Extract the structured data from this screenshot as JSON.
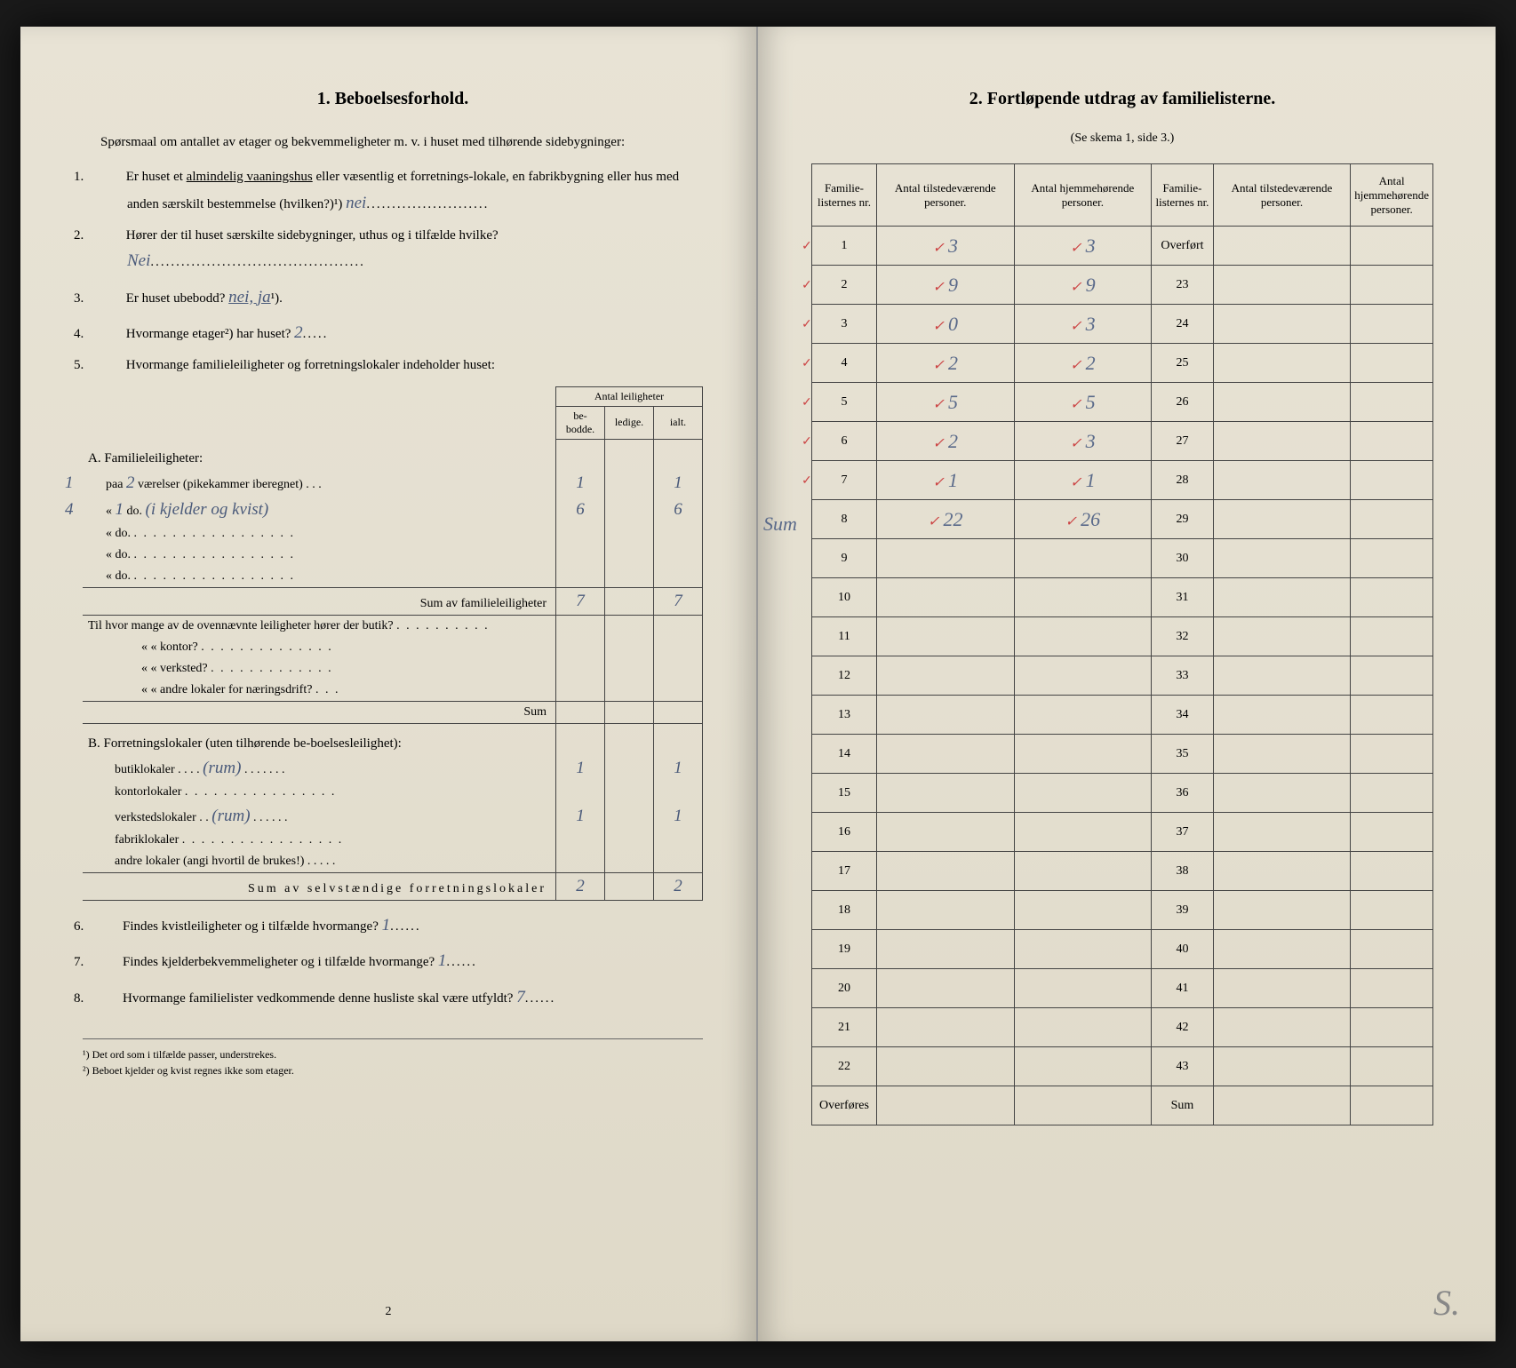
{
  "left": {
    "title": "1.   Beboelsesforhold.",
    "intro": "Spørsmaal om antallet av etager og bekvemmeligheter m. v. i huset med tilhørende sidebygninger:",
    "q1_pre": "Er huset et ",
    "q1_underlined": "almindelig vaaningshus",
    "q1_post": " eller væsentlig et forretnings-lokale, en fabrikbygning eller hus med anden særskilt bestemmelse (hvilken?)¹)",
    "q1_ans": "nei",
    "q2": "Hører der til huset særskilte sidebygninger, uthus og i tilfælde hvilke?",
    "q2_ans": "Nei",
    "q3_pre": "Er huset ubebodd? ",
    "q3_opt": "nei,  ja",
    "q3_post": "¹).",
    "q4": "Hvormange etager²) har huset?",
    "q4_ans": "2",
    "q5": "Hvormange familieleiligheter og forretningslokaler indeholder huset:",
    "tbl_header": "Antal leiligheter",
    "tbl_cols": [
      "be-\nbodde.",
      "ledige.",
      "ialt."
    ],
    "sectionA": "A. Familieleiligheter:",
    "rowA_margin1": "1",
    "rowA_margin2": "4",
    "rowA1_text": "paa 2 værelser (pikekammer iberegnet)",
    "rowA1_hw_paa": "2",
    "rowA1_vals": [
      "1",
      "",
      "1"
    ],
    "rowA2_text": "«   1   do.",
    "rowA2_hw": "(i kjelder og kvist)",
    "rowA2_vals": [
      "6",
      "",
      "6"
    ],
    "rowA3_text": "«        do.",
    "rowA4_text": "«        do.",
    "rowA5_text": "«        do.",
    "sumA_label": "Sum av familieleiligheter",
    "sumA_vals": [
      "7",
      "",
      "7"
    ],
    "butik_intro": "Til hvor mange av de ovennævnte leiligheter hører der butik?",
    "butik_items": [
      "«   « kontor?",
      "«   « verksted?",
      "«   « andre lokaler for næringsdrift?"
    ],
    "sum_label": "Sum",
    "sectionB": "B. Forretningslokaler (uten tilhørende be-boelsesleilighet):",
    "rowB1": "butiklokaler",
    "rowB1_hw": "(rum)",
    "rowB1_vals": [
      "1",
      "",
      "1"
    ],
    "rowB2": "kontorlokaler",
    "rowB3": "verkstedslokaler",
    "rowB3_hw": "(rum)",
    "rowB3_vals": [
      "1",
      "",
      "1"
    ],
    "rowB4": "fabriklokaler",
    "rowB5": "andre lokaler (angi hvortil de brukes!)",
    "sumB_label": "Sum av selvstændige forretningslokaler",
    "sumB_vals": [
      "2",
      "",
      "2"
    ],
    "q6": "Findes kvistleiligheter og i tilfælde hvormange?",
    "q6_ans": "1",
    "q7": "Findes kjelderbekvemmeligheter og i tilfælde hvormange?",
    "q7_ans": "1",
    "q8": "Hvormange familielister vedkommende denne husliste skal være utfyldt?",
    "q8_ans": "7",
    "fn1": "¹) Det ord som i tilfælde passer, understrekes.",
    "fn2": "²) Beboet kjelder og kvist regnes ikke som etager.",
    "page_num": "2"
  },
  "right": {
    "title": "2.   Fortløpende utdrag av familielisterne.",
    "subtitle": "(Se skema 1, side 3.)",
    "headers": [
      "Familie-\nlisternes\nnr.",
      "Antal\ntilstedeværende\npersoner.",
      "Antal\nhjemmehørende\npersoner.",
      "Familie-\nlisternes\nnr.",
      "Antal\ntilstedeværende\npersoner.",
      "Antal\nhjemmehørende\npersoner."
    ],
    "rows": [
      {
        "n1": "1",
        "v1": "3",
        "v2": "3",
        "n2": "Overført",
        "v3": "",
        "v4": "",
        "tick": true
      },
      {
        "n1": "2",
        "v1": "9",
        "v2": "9",
        "n2": "23",
        "v3": "",
        "v4": "",
        "tick": true
      },
      {
        "n1": "3",
        "v1": "0",
        "v2": "3",
        "n2": "24",
        "v3": "",
        "v4": "",
        "tick": true
      },
      {
        "n1": "4",
        "v1": "2",
        "v2": "2",
        "n2": "25",
        "v3": "",
        "v4": "",
        "tick": true
      },
      {
        "n1": "5",
        "v1": "5",
        "v2": "5",
        "n2": "26",
        "v3": "",
        "v4": "",
        "tick": true
      },
      {
        "n1": "6",
        "v1": "2",
        "v2": "3",
        "n2": "27",
        "v3": "",
        "v4": "",
        "tick": true
      },
      {
        "n1": "7",
        "v1": "1",
        "v2": "1",
        "n2": "28",
        "v3": "",
        "v4": "",
        "tick": true
      },
      {
        "n1": "8",
        "v1": "22",
        "v2": "26",
        "n2": "29",
        "v3": "",
        "v4": "",
        "sum": "Sum"
      },
      {
        "n1": "9",
        "v1": "",
        "v2": "",
        "n2": "30",
        "v3": "",
        "v4": ""
      },
      {
        "n1": "10",
        "v1": "",
        "v2": "",
        "n2": "31",
        "v3": "",
        "v4": ""
      },
      {
        "n1": "11",
        "v1": "",
        "v2": "",
        "n2": "32",
        "v3": "",
        "v4": ""
      },
      {
        "n1": "12",
        "v1": "",
        "v2": "",
        "n2": "33",
        "v3": "",
        "v4": ""
      },
      {
        "n1": "13",
        "v1": "",
        "v2": "",
        "n2": "34",
        "v3": "",
        "v4": ""
      },
      {
        "n1": "14",
        "v1": "",
        "v2": "",
        "n2": "35",
        "v3": "",
        "v4": ""
      },
      {
        "n1": "15",
        "v1": "",
        "v2": "",
        "n2": "36",
        "v3": "",
        "v4": ""
      },
      {
        "n1": "16",
        "v1": "",
        "v2": "",
        "n2": "37",
        "v3": "",
        "v4": ""
      },
      {
        "n1": "17",
        "v1": "",
        "v2": "",
        "n2": "38",
        "v3": "",
        "v4": ""
      },
      {
        "n1": "18",
        "v1": "",
        "v2": "",
        "n2": "39",
        "v3": "",
        "v4": ""
      },
      {
        "n1": "19",
        "v1": "",
        "v2": "",
        "n2": "40",
        "v3": "",
        "v4": ""
      },
      {
        "n1": "20",
        "v1": "",
        "v2": "",
        "n2": "41",
        "v3": "",
        "v4": ""
      },
      {
        "n1": "21",
        "v1": "",
        "v2": "",
        "n2": "42",
        "v3": "",
        "v4": ""
      },
      {
        "n1": "22",
        "v1": "",
        "v2": "",
        "n2": "43",
        "v3": "",
        "v4": ""
      }
    ],
    "footer_left": "Overføres",
    "footer_right": "Sum"
  },
  "colors": {
    "paper": "#e4dfd0",
    "ink": "#2a2a2a",
    "handwriting": "#4a5a7a",
    "red_tick": "#c44"
  }
}
